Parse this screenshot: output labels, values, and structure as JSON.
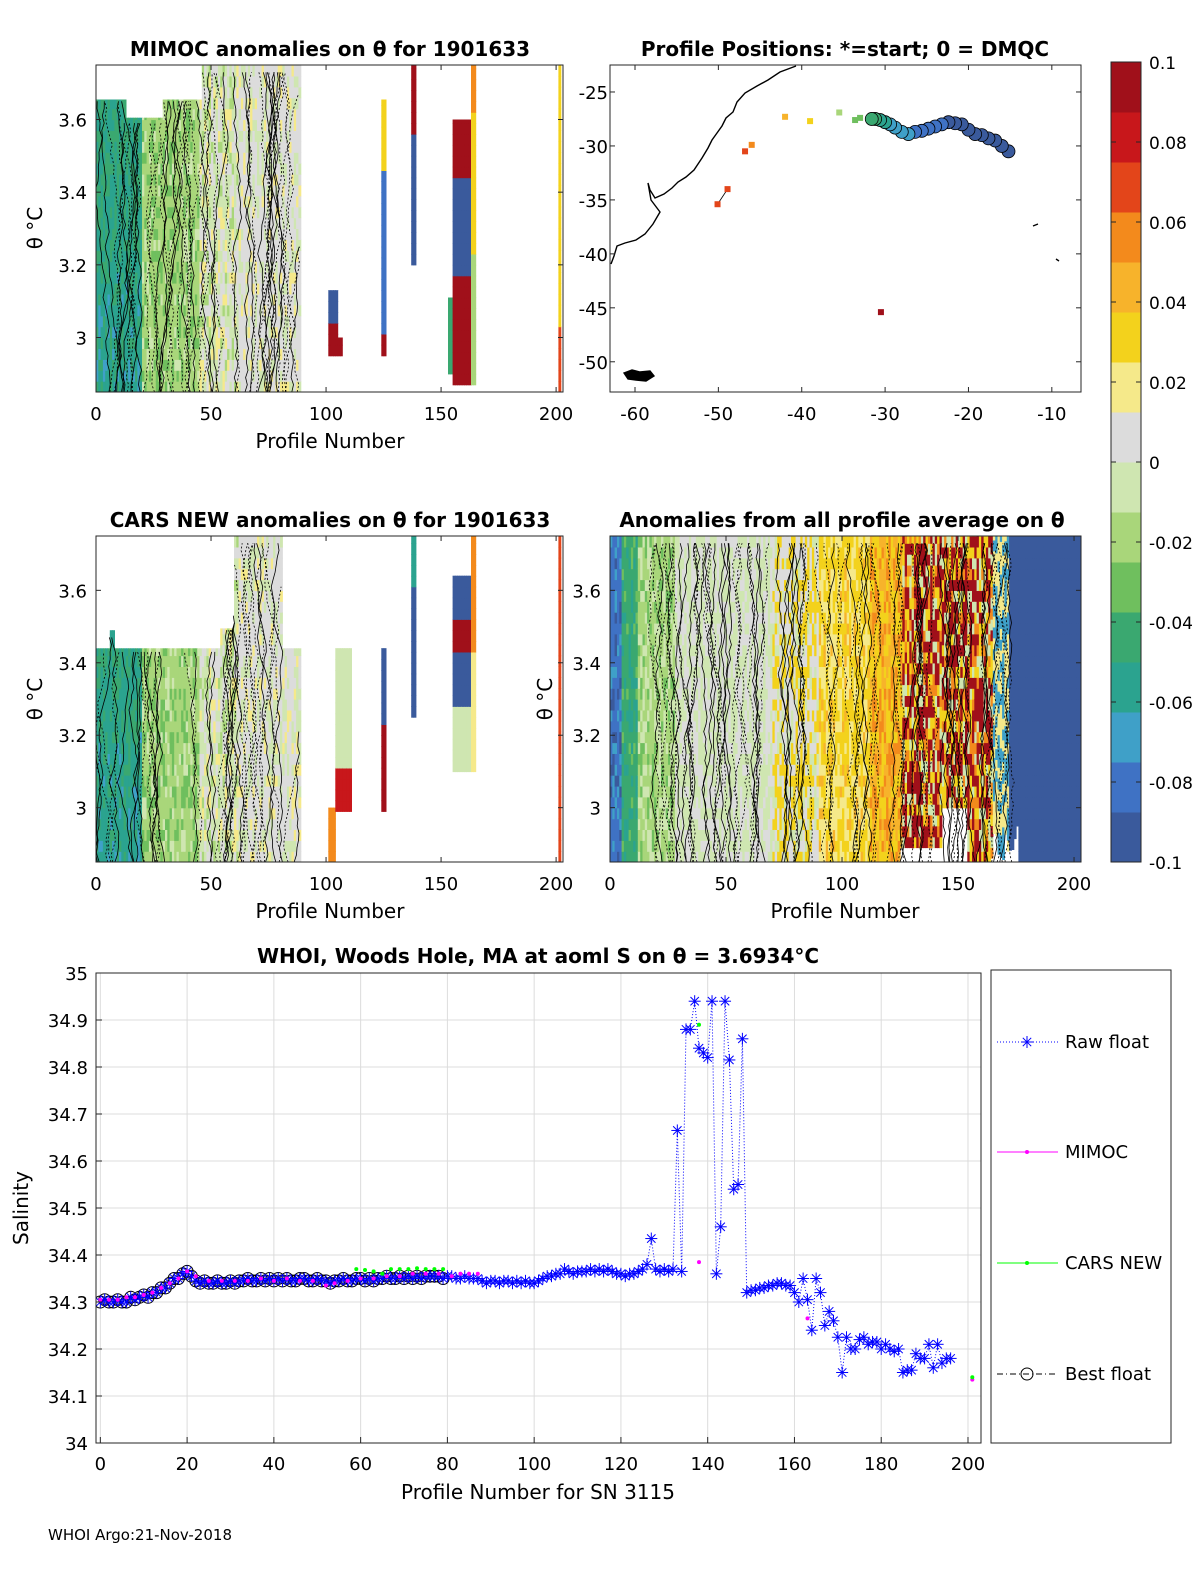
{
  "footer": "WHOI Argo:21-Nov-2018",
  "colors": {
    "raw": "#0000ff",
    "mimoc": "#ff00ff",
    "cars": "#00ff00",
    "best": "#000000",
    "colormap": [
      "#3a5a9c",
      "#3f72c4",
      "#3fa0c8",
      "#2ba38f",
      "#3aa870",
      "#6fbf5e",
      "#a9d67a",
      "#cfe6b1",
      "#dcdcdc",
      "#f5e98a",
      "#f3d21c",
      "#f7b32b",
      "#f38a1c",
      "#e3451a",
      "#c8171b",
      "#a0101a"
    ]
  },
  "chart_data": [
    {
      "id": "mimoc",
      "type": "heatmap",
      "title": "MIMOC anomalies on θ  for 1901633",
      "xlabel": "Profile Number",
      "ylabel": "θ °C",
      "xlim": [
        0,
        203
      ],
      "ylim": [
        2.85,
        3.75
      ],
      "xticks": [
        0,
        50,
        100,
        150,
        200
      ],
      "yticks": [
        3,
        3.2,
        3.4,
        3.6
      ]
    },
    {
      "id": "positions",
      "type": "scatter",
      "title": "Profile Positions: *=start; 0 = DMQC",
      "xlim": [
        -63,
        -6.5
      ],
      "ylim": [
        -52.8,
        -22.5
      ],
      "xticks": [
        -60,
        -50,
        -40,
        -30,
        -20,
        -10
      ],
      "yticks": [
        -25,
        -30,
        -35,
        -40,
        -45,
        -50
      ],
      "points": [
        {
          "lon": -14.6,
          "lat": -30.8,
          "marker": "star",
          "value": -0.1
        },
        {
          "lon": -15.2,
          "lat": -30.5,
          "marker": "circle",
          "value": -0.1
        },
        {
          "lon": -16.0,
          "lat": -30.0,
          "marker": "circle",
          "value": -0.1
        },
        {
          "lon": -16.8,
          "lat": -29.5,
          "marker": "circle",
          "value": -0.1
        },
        {
          "lon": -17.6,
          "lat": -29.3,
          "marker": "circle",
          "value": -0.09
        },
        {
          "lon": -18.4,
          "lat": -29.0,
          "marker": "circle",
          "value": -0.09
        },
        {
          "lon": -19.2,
          "lat": -28.9,
          "marker": "circle",
          "value": -0.09
        },
        {
          "lon": -20.0,
          "lat": -28.5,
          "marker": "circle",
          "value": -0.09
        },
        {
          "lon": -20.8,
          "lat": -28.0,
          "marker": "circle",
          "value": -0.09
        },
        {
          "lon": -21.6,
          "lat": -27.9,
          "marker": "circle",
          "value": -0.09
        },
        {
          "lon": -22.4,
          "lat": -27.8,
          "marker": "circle",
          "value": -0.09
        },
        {
          "lon": -23.2,
          "lat": -28.0,
          "marker": "circle",
          "value": -0.085
        },
        {
          "lon": -24.0,
          "lat": -28.2,
          "marker": "circle",
          "value": -0.085
        },
        {
          "lon": -24.8,
          "lat": -28.4,
          "marker": "circle",
          "value": -0.085
        },
        {
          "lon": -25.6,
          "lat": -28.6,
          "marker": "circle",
          "value": -0.08
        },
        {
          "lon": -26.4,
          "lat": -28.7,
          "marker": "circle",
          "value": -0.08
        },
        {
          "lon": -27.2,
          "lat": -28.9,
          "marker": "circle",
          "value": -0.075
        },
        {
          "lon": -28.0,
          "lat": -28.7,
          "marker": "circle",
          "value": -0.075
        },
        {
          "lon": -28.8,
          "lat": -28.3,
          "marker": "circle",
          "value": -0.07
        },
        {
          "lon": -29.4,
          "lat": -28.0,
          "marker": "circle",
          "value": -0.07
        },
        {
          "lon": -30.0,
          "lat": -27.8,
          "marker": "circle",
          "value": -0.06
        },
        {
          "lon": -30.6,
          "lat": -27.6,
          "marker": "circle",
          "value": -0.055
        },
        {
          "lon": -31.2,
          "lat": -27.5,
          "marker": "circle",
          "value": -0.05
        },
        {
          "lon": -31.6,
          "lat": -27.5,
          "marker": "circle",
          "value": -0.045
        },
        {
          "lon": -33.0,
          "lat": -27.4,
          "marker": "square",
          "value": -0.035
        },
        {
          "lon": -33.6,
          "lat": -27.6,
          "marker": "square",
          "value": -0.035
        },
        {
          "lon": -35.5,
          "lat": -26.9,
          "marker": "square",
          "value": -0.025
        },
        {
          "lon": -39.0,
          "lat": -27.7,
          "marker": "square",
          "value": 0.03
        },
        {
          "lon": -42.0,
          "lat": -27.3,
          "marker": "square",
          "value": 0.04
        },
        {
          "lon": -46.0,
          "lat": -29.9,
          "marker": "square",
          "value": 0.06
        },
        {
          "lon": -46.8,
          "lat": -30.5,
          "marker": "square",
          "value": 0.065
        },
        {
          "lon": -48.9,
          "lat": -34.0,
          "marker": "square",
          "value": 0.07
        },
        {
          "lon": -50.1,
          "lat": -35.4,
          "marker": "square",
          "value": 0.07
        },
        {
          "lon": -30.5,
          "lat": -45.4,
          "marker": "square",
          "value": 0.1
        }
      ]
    },
    {
      "id": "cars",
      "type": "heatmap",
      "title": "CARS NEW anomalies on θ for 1901633",
      "xlabel": "Profile Number",
      "ylabel": "θ °C",
      "xlim": [
        0,
        203
      ],
      "ylim": [
        2.85,
        3.75
      ],
      "xticks": [
        0,
        50,
        100,
        150,
        200
      ],
      "yticks": [
        3,
        3.2,
        3.4,
        3.6
      ]
    },
    {
      "id": "allavg",
      "type": "heatmap",
      "title": "Anomalies from all profile average on θ",
      "xlabel": "Profile Number",
      "ylabel": "θ °C",
      "xlim": [
        0,
        203
      ],
      "ylim": [
        2.85,
        3.75
      ],
      "xticks": [
        0,
        50,
        100,
        150,
        200
      ],
      "yticks": [
        3,
        3.2,
        3.4,
        3.6
      ]
    },
    {
      "id": "colorbar",
      "type": "heatmap",
      "clim": [
        -0.1,
        0.1
      ],
      "ticks": [
        "0.1",
        "0.08",
        "0.06",
        "0.04",
        "0.02",
        "0",
        "-0.02",
        "-0.04",
        "-0.06",
        "-0.08",
        "-0.1"
      ]
    },
    {
      "id": "salinity",
      "type": "line",
      "title": "WHOI, Woods Hole, MA at aoml S on θ = 3.6934°C",
      "xlabel": "Profile Number for SN 3115",
      "ylabel": "Salinity",
      "xlim": [
        -1,
        203
      ],
      "ylim": [
        34,
        35
      ],
      "xticks": [
        0,
        20,
        40,
        60,
        80,
        100,
        120,
        140,
        160,
        180,
        200
      ],
      "yticks": [
        34,
        34.1,
        34.2,
        34.3,
        34.4,
        34.5,
        34.6,
        34.7,
        34.8,
        34.9,
        35
      ],
      "grid": true,
      "legend": "right",
      "series": [
        {
          "name": "Raw float",
          "x_start": 0,
          "values": [
            34.3,
            34.305,
            34.3,
            34.3,
            34.305,
            34.3,
            34.3,
            34.31,
            34.305,
            34.31,
            34.315,
            34.31,
            34.32,
            34.32,
            34.33,
            34.33,
            34.34,
            34.35,
            34.35,
            34.36,
            34.365,
            34.355,
            34.345,
            34.34,
            34.345,
            34.34,
            34.34,
            34.345,
            34.34,
            34.34,
            34.345,
            34.34,
            34.345,
            34.345,
            34.35,
            34.345,
            34.345,
            34.35,
            34.345,
            34.35,
            34.345,
            34.35,
            34.345,
            34.35,
            34.345,
            34.345,
            34.35,
            34.35,
            34.345,
            34.345,
            34.35,
            34.345,
            34.345,
            34.34,
            34.345,
            34.345,
            34.35,
            34.345,
            34.345,
            34.35,
            34.35,
            34.345,
            34.35,
            34.345,
            34.35,
            34.35,
            34.355,
            34.35,
            34.35,
            34.355,
            34.35,
            34.355,
            34.35,
            34.355,
            34.35,
            34.355,
            34.355,
            34.355,
            34.355,
            34.35,
            34.355,
            34.355,
            34.35,
            34.35,
            34.355,
            34.35,
            34.35,
            34.35,
            34.345,
            34.34,
            34.345,
            34.345,
            34.34,
            34.345,
            34.345,
            34.34,
            34.345,
            34.34,
            34.345,
            34.34,
            34.34,
            34.345,
            34.35,
            34.355,
            34.355,
            34.36,
            34.36,
            34.37,
            34.365,
            34.36,
            34.365,
            34.365,
            34.365,
            34.37,
            34.365,
            34.37,
            34.365,
            34.37,
            34.365,
            34.36,
            34.36,
            34.355,
            34.36,
            34.36,
            34.365,
            34.37,
            34.38,
            34.435,
            34.37,
            34.365,
            34.37,
            34.365,
            34.37,
            34.665,
            34.365,
            34.88,
            34.88,
            34.94,
            34.84,
            34.83,
            34.82,
            34.94,
            34.36,
            34.46,
            34.94,
            34.815,
            34.54,
            34.55,
            34.86,
            34.32,
            34.325,
            34.325,
            34.33,
            34.33,
            34.335,
            34.335,
            34.34,
            34.34,
            34.335,
            34.335,
            34.32,
            34.3,
            34.35,
            34.305,
            34.24,
            34.35,
            34.32,
            34.25,
            34.28,
            34.26,
            34.225,
            34.15,
            34.225,
            34.2,
            34.2,
            34.22,
            34.225,
            34.21,
            34.215,
            34.215,
            34.2,
            34.21,
            34.2,
            34.195,
            34.2,
            34.15,
            34.155,
            34.155,
            34.19,
            34.18,
            34.18,
            34.21,
            34.16,
            34.21,
            34.17,
            34.18,
            34.18
          ]
        },
        {
          "name": "MIMOC",
          "points": [
            [
              0,
              34.305
            ],
            [
              2,
              34.305
            ],
            [
              4,
              34.305
            ],
            [
              6,
              34.31
            ],
            [
              8,
              34.31
            ],
            [
              10,
              34.315
            ],
            [
              12,
              34.32
            ],
            [
              14,
              34.33
            ],
            [
              16,
              34.34
            ],
            [
              18,
              34.35
            ],
            [
              20,
              34.365
            ],
            [
              22,
              34.355
            ],
            [
              25,
              34.345
            ],
            [
              28,
              34.345
            ],
            [
              31,
              34.345
            ],
            [
              34,
              34.345
            ],
            [
              37,
              34.35
            ],
            [
              40,
              34.345
            ],
            [
              43,
              34.35
            ],
            [
              46,
              34.345
            ],
            [
              49,
              34.345
            ],
            [
              52,
              34.335
            ],
            [
              54,
              34.34
            ],
            [
              57,
              34.345
            ],
            [
              60,
              34.35
            ],
            [
              63,
              34.35
            ],
            [
              66,
              34.355
            ],
            [
              69,
              34.355
            ],
            [
              72,
              34.36
            ],
            [
              75,
              34.36
            ],
            [
              78,
              34.36
            ],
            [
              81,
              34.355
            ],
            [
              83,
              34.36
            ],
            [
              85,
              34.36
            ],
            [
              87,
              34.36
            ],
            [
              138,
              34.385
            ],
            [
              163,
              34.265
            ],
            [
              201,
              34.135
            ]
          ]
        },
        {
          "name": "CARS NEW",
          "points": [
            [
              59,
              34.37
            ],
            [
              61,
              34.368
            ],
            [
              63,
              34.365
            ],
            [
              65,
              34.36
            ],
            [
              67,
              34.37
            ],
            [
              69,
              34.37
            ],
            [
              71,
              34.37
            ],
            [
              73,
              34.372
            ],
            [
              75,
              34.37
            ],
            [
              77,
              34.37
            ],
            [
              79,
              34.37
            ],
            [
              138,
              34.89
            ],
            [
              201,
              34.14
            ]
          ]
        },
        {
          "name": "Best float",
          "x_start": 0,
          "count": 80
        }
      ]
    }
  ]
}
